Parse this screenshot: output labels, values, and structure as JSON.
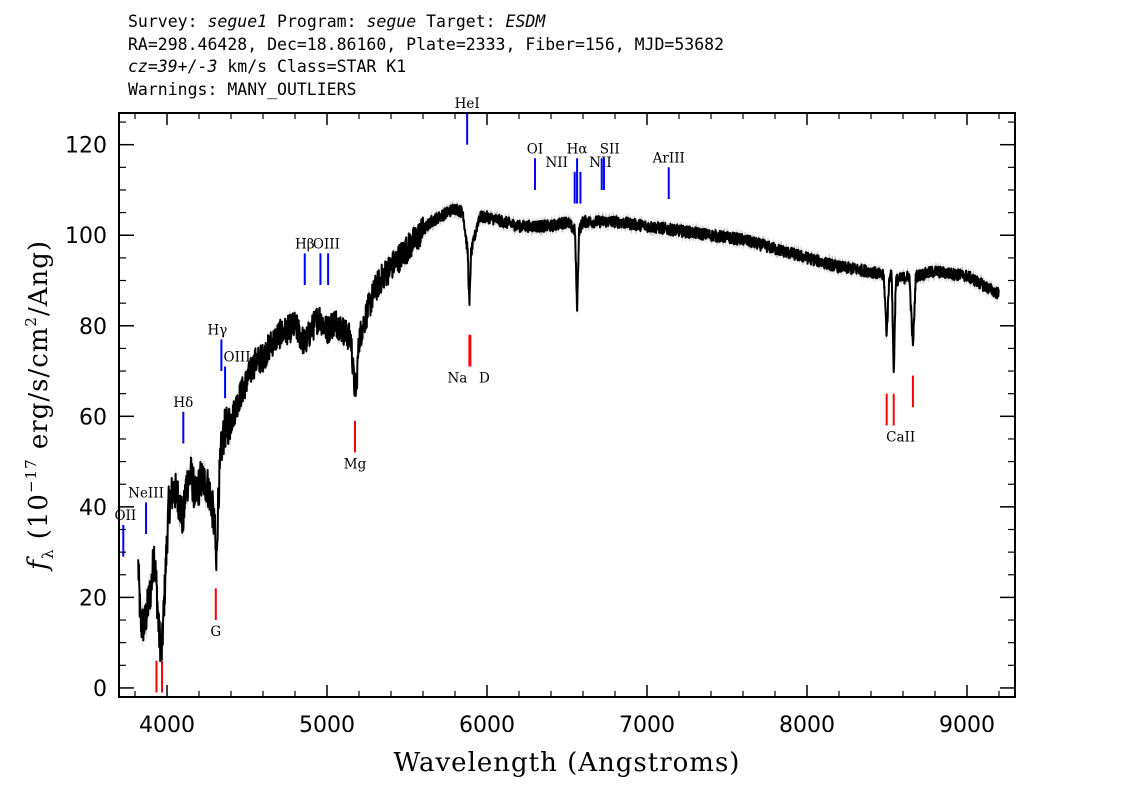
{
  "header": {
    "line1": {
      "survey_label": "Survey:",
      "survey": "segue1",
      "program_label": "Program:",
      "program": "segue",
      "target_label": "Target:",
      "target": "ESDM"
    },
    "line2": "RA=298.46428, Dec=18.86160, Plate=2333, Fiber=156, MJD=53682",
    "line3": {
      "cz": "cz=39+/-3",
      "rest": "km/s Class=STAR K1"
    },
    "line4": "Warnings: MANY_OUTLIERS"
  },
  "chart_data": {
    "type": "line",
    "xlabel": "Wavelength (Angstroms)",
    "ylabel": "f_λ (10^-17 erg/s/cm^2/Ang)",
    "xlim": [
      3700,
      9300
    ],
    "ylim": [
      -2,
      127
    ],
    "xticks": [
      4000,
      5000,
      6000,
      7000,
      8000,
      9000
    ],
    "yticks": [
      0,
      20,
      40,
      60,
      80,
      100,
      120
    ],
    "grid": false,
    "colors": {
      "spectrum": "#000000",
      "error": "#b0b0b0",
      "emission": "#0000ff",
      "absorption": "#ff0000"
    },
    "spectrum_anchors": [
      [
        3820,
        27
      ],
      [
        3835,
        14
      ],
      [
        3860,
        14
      ],
      [
        3880,
        18
      ],
      [
        3900,
        22
      ],
      [
        3920,
        30
      ],
      [
        3935,
        22
      ],
      [
        3950,
        12
      ],
      [
        3968,
        8
      ],
      [
        3990,
        25
      ],
      [
        4010,
        40
      ],
      [
        4040,
        44
      ],
      [
        4070,
        42
      ],
      [
        4101,
        37
      ],
      [
        4120,
        45
      ],
      [
        4150,
        47
      ],
      [
        4180,
        42
      ],
      [
        4210,
        46
      ],
      [
        4250,
        45
      ],
      [
        4280,
        41
      ],
      [
        4300,
        34
      ],
      [
        4308,
        26
      ],
      [
        4320,
        42
      ],
      [
        4340,
        53
      ],
      [
        4360,
        57
      ],
      [
        4400,
        59
      ],
      [
        4450,
        64
      ],
      [
        4500,
        68
      ],
      [
        4550,
        72
      ],
      [
        4600,
        73
      ],
      [
        4650,
        76
      ],
      [
        4700,
        78
      ],
      [
        4750,
        79
      ],
      [
        4800,
        80
      ],
      [
        4861,
        76
      ],
      [
        4900,
        79
      ],
      [
        4950,
        82
      ],
      [
        5000,
        79
      ],
      [
        5050,
        81
      ],
      [
        5100,
        79
      ],
      [
        5150,
        77
      ],
      [
        5170,
        67
      ],
      [
        5183,
        66
      ],
      [
        5200,
        77
      ],
      [
        5250,
        83
      ],
      [
        5300,
        88
      ],
      [
        5350,
        91
      ],
      [
        5400,
        93
      ],
      [
        5450,
        95
      ],
      [
        5500,
        97
      ],
      [
        5550,
        99
      ],
      [
        5600,
        101
      ],
      [
        5650,
        103
      ],
      [
        5700,
        104
      ],
      [
        5750,
        105
      ],
      [
        5800,
        106
      ],
      [
        5850,
        105
      ],
      [
        5880,
        96
      ],
      [
        5890,
        84
      ],
      [
        5900,
        96
      ],
      [
        5950,
        104
      ],
      [
        6000,
        104
      ],
      [
        6100,
        103
      ],
      [
        6200,
        102
      ],
      [
        6300,
        102
      ],
      [
        6400,
        102
      ],
      [
        6500,
        103
      ],
      [
        6550,
        101
      ],
      [
        6563,
        83
      ],
      [
        6575,
        101
      ],
      [
        6600,
        103
      ],
      [
        6700,
        103
      ],
      [
        6800,
        103
      ],
      [
        7000,
        102
      ],
      [
        7200,
        101
      ],
      [
        7400,
        100
      ],
      [
        7600,
        99
      ],
      [
        7800,
        97
      ],
      [
        8000,
        95
      ],
      [
        8200,
        93
      ],
      [
        8400,
        92
      ],
      [
        8480,
        91
      ],
      [
        8498,
        78
      ],
      [
        8515,
        91
      ],
      [
        8530,
        91
      ],
      [
        8542,
        69
      ],
      [
        8555,
        90
      ],
      [
        8640,
        91
      ],
      [
        8662,
        75
      ],
      [
        8680,
        91
      ],
      [
        8800,
        92
      ],
      [
        9000,
        91
      ],
      [
        9100,
        89
      ],
      [
        9200,
        87
      ]
    ],
    "emission_lines": [
      {
        "label": "OII",
        "x": 3727,
        "y_top": 36,
        "y_bottom": 29
      },
      {
        "label": "NeIII",
        "x": 3869,
        "y_top": 41,
        "y_bottom": 34
      },
      {
        "label": "Hδ",
        "x": 4102,
        "y_top": 61,
        "y_bottom": 54
      },
      {
        "label": "Hγ",
        "x": 4340,
        "y_top": 77,
        "y_bottom": 70
      },
      {
        "label": "OIII",
        "x": 4363,
        "y_top": 71,
        "y_bottom": 64
      },
      {
        "label": "Hβ",
        "x": 4861,
        "y_top": 96,
        "y_bottom": 89
      },
      {
        "label": "OIII",
        "x": 4959,
        "y_top": 96,
        "y_bottom": 89
      },
      {
        "label": "",
        "x": 5007,
        "y_top": 96,
        "y_bottom": 89
      },
      {
        "label": "HeI",
        "x": 5876,
        "y_top": 127,
        "y_bottom": 120
      },
      {
        "label": "OI",
        "x": 6300,
        "y_top": 117,
        "y_bottom": 110
      },
      {
        "label": "NII",
        "x": 6548,
        "y_top": 114,
        "y_bottom": 107
      },
      {
        "label": "Hα",
        "x": 6563,
        "y_top": 117,
        "y_bottom": 107
      },
      {
        "label": "NII",
        "x": 6584,
        "y_top": 114,
        "y_bottom": 107
      },
      {
        "label": "SII",
        "x": 6717,
        "y_top": 117,
        "y_bottom": 110
      },
      {
        "label": "",
        "x": 6731,
        "y_top": 117,
        "y_bottom": 110
      },
      {
        "label": "ArIII",
        "x": 7136,
        "y_top": 115,
        "y_bottom": 108
      }
    ],
    "absorption_lines": [
      {
        "label": "",
        "x": 3934,
        "y_top": 6,
        "y_bottom": -1
      },
      {
        "label": "",
        "x": 3969,
        "y_top": 6,
        "y_bottom": -1
      },
      {
        "label": "G",
        "x": 4305,
        "y_top": 22,
        "y_bottom": 15
      },
      {
        "label": "Mg",
        "x": 5175,
        "y_top": 59,
        "y_bottom": 52
      },
      {
        "label": "Na",
        "x": 5890,
        "y_top": 78,
        "y_bottom": 71
      },
      {
        "label": "D",
        "x": 5896,
        "y_top": 78,
        "y_bottom": 71
      },
      {
        "label": "CaII",
        "x": 8498,
        "y_top": 65,
        "y_bottom": 58
      },
      {
        "label": "",
        "x": 8542,
        "y_top": 65,
        "y_bottom": 58
      },
      {
        "label": "",
        "x": 8662,
        "y_top": 69,
        "y_bottom": 62
      }
    ]
  }
}
